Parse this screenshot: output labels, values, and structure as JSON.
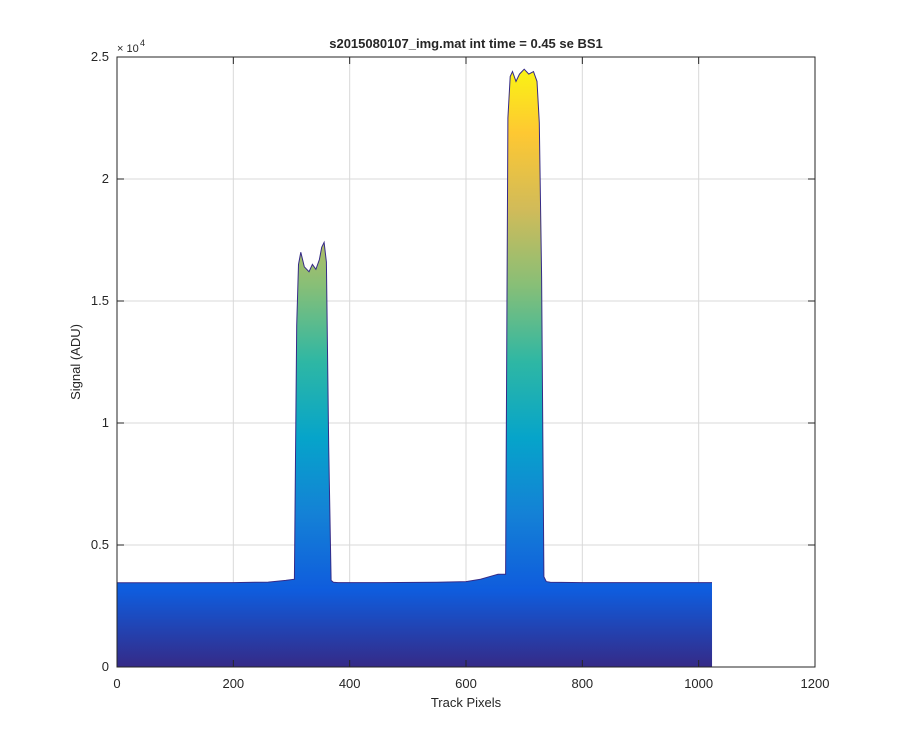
{
  "chart_data": {
    "type": "area",
    "title": "s2015080107_img.mat int time = 0.45 se   BS1",
    "xlabel": "Track Pixels",
    "ylabel": "Signal (ADU)",
    "y_exponent_label": "× 10",
    "y_exponent_power": "4",
    "xlim": [
      0,
      1200
    ],
    "ylim": [
      0,
      25000
    ],
    "xticks": [
      0,
      200,
      400,
      600,
      800,
      1000,
      1200
    ],
    "xtick_labels": [
      "0",
      "200",
      "400",
      "600",
      "800",
      "1000",
      "1200"
    ],
    "yticks": [
      0,
      5000,
      10000,
      15000,
      20000,
      25000
    ],
    "ytick_labels": [
      "0",
      "0.5",
      "1",
      "1.5",
      "2",
      "2.5"
    ],
    "grid": true,
    "colormap": "parula (blue to yellow by signal level)",
    "colormap_stops": [
      "#352a87",
      "#0f5cdd",
      "#1481d6",
      "#06a4ca",
      "#2eb7a4",
      "#87bf77",
      "#d1bb59",
      "#fec832",
      "#f9fb0e"
    ],
    "series": [
      {
        "x": [
          0,
          100,
          200,
          260,
          290,
          305,
          309,
          312,
          316,
          322,
          330,
          336,
          342,
          348,
          352,
          356,
          360,
          364,
          368,
          372,
          380,
          450,
          550,
          600,
          625,
          640,
          655,
          668,
          672,
          676,
          680,
          686,
          692,
          700,
          708,
          716,
          722,
          726,
          730,
          734,
          738,
          745,
          800,
          900,
          1000,
          1023
        ],
        "y": [
          3450,
          3450,
          3460,
          3480,
          3550,
          3600,
          14000,
          16500,
          17000,
          16400,
          16200,
          16500,
          16300,
          16700,
          17200,
          17400,
          16600,
          9000,
          3550,
          3470,
          3460,
          3460,
          3470,
          3500,
          3600,
          3700,
          3800,
          3800,
          22500,
          24200,
          24400,
          24000,
          24300,
          24500,
          24300,
          24400,
          24000,
          22300,
          16000,
          3700,
          3500,
          3470,
          3460,
          3460,
          3460,
          3460
        ]
      }
    ]
  }
}
